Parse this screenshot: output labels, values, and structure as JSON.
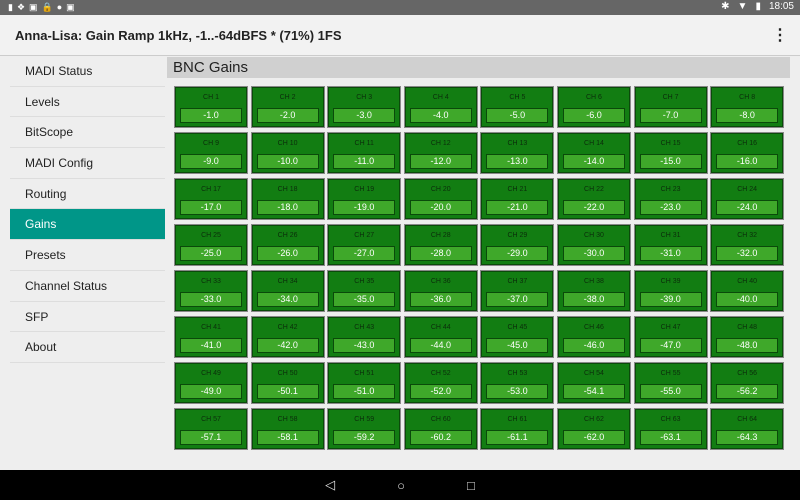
{
  "status_bar": {
    "left_icons": [
      "usb-icon",
      "dropbox-icon",
      "image-icon",
      "lock-icon",
      "share-icon",
      "gallery-icon"
    ],
    "right_icons": [
      "bluetooth-icon",
      "wifi-icon",
      "battery-icon"
    ],
    "time": "18:05"
  },
  "app_bar": {
    "title": "Anna-Lisa: Gain Ramp 1kHz, -1..-64dBFS * (71%) 1FS",
    "menu_icon": "more-vert-icon"
  },
  "sidebar": {
    "selected": "Gains",
    "items": [
      "MADI Status",
      "Levels",
      "BitScope",
      "MADI Config",
      "Routing",
      "Gains",
      "Presets",
      "Channel Status",
      "SFP",
      "About"
    ]
  },
  "main": {
    "title": "BNC Gains",
    "channels": [
      "CH 1",
      "CH 2",
      "CH 3",
      "CH 4",
      "CH 5",
      "CH 6",
      "CH 7",
      "CH 8",
      "CH 9",
      "CH 10",
      "CH 11",
      "CH 12",
      "CH 13",
      "CH 14",
      "CH 15",
      "CH 16",
      "CH 17",
      "CH 18",
      "CH 19",
      "CH 20",
      "CH 21",
      "CH 22",
      "CH 23",
      "CH 24",
      "CH 25",
      "CH 26",
      "CH 27",
      "CH 28",
      "CH 29",
      "CH 30",
      "CH 31",
      "CH 32",
      "CH 33",
      "CH 34",
      "CH 35",
      "CH 36",
      "CH 37",
      "CH 38",
      "CH 39",
      "CH 40",
      "CH 41",
      "CH 42",
      "CH 43",
      "CH 44",
      "CH 45",
      "CH 46",
      "CH 47",
      "CH 48",
      "CH 49",
      "CH 50",
      "CH 51",
      "CH 52",
      "CH 53",
      "CH 54",
      "CH 55",
      "CH 56",
      "CH 57",
      "CH 58",
      "CH 59",
      "CH 60",
      "CH 61",
      "CH 62",
      "CH 63",
      "CH 64"
    ],
    "values": [
      "-1.0",
      "-2.0",
      "-3.0",
      "-4.0",
      "-5.0",
      "-6.0",
      "-7.0",
      "-8.0",
      "-9.0",
      "-10.0",
      "-11.0",
      "-12.0",
      "-13.0",
      "-14.0",
      "-15.0",
      "-16.0",
      "-17.0",
      "-18.0",
      "-19.0",
      "-20.0",
      "-21.0",
      "-22.0",
      "-23.0",
      "-24.0",
      "-25.0",
      "-26.0",
      "-27.0",
      "-28.0",
      "-29.0",
      "-30.0",
      "-31.0",
      "-32.0",
      "-33.0",
      "-34.0",
      "-35.0",
      "-36.0",
      "-37.0",
      "-38.0",
      "-39.0",
      "-40.0",
      "-41.0",
      "-42.0",
      "-43.0",
      "-44.0",
      "-45.0",
      "-46.0",
      "-47.0",
      "-48.0",
      "-49.0",
      "-50.1",
      "-51.0",
      "-52.0",
      "-53.0",
      "-54.1",
      "-55.0",
      "-56.2",
      "-57.1",
      "-58.1",
      "-59.2",
      "-60.2",
      "-61.1",
      "-62.0",
      "-63.1",
      "-64.3"
    ]
  },
  "colors": {
    "accent": "#009688",
    "cell_bg": "#127d12",
    "value_bg": "#3fa82a"
  },
  "nav_bar": {
    "icons": [
      "back-icon",
      "home-icon",
      "recents-icon"
    ]
  }
}
